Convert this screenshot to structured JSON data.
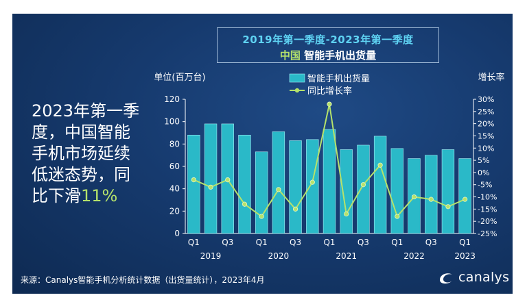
{
  "title": {
    "line1": "2019年第一季度-2023年第一季度",
    "country": "中国",
    "line2_rest": " 智能手机出货量"
  },
  "headline": {
    "main": "2023年第一季度，中国智能手机市场延续低迷态势，同比下滑",
    "highlight": "11%"
  },
  "source": "来源：Canalys智能手机分析统计数据（出货量统计），2023年4月",
  "logo": {
    "text": "canalys",
    "icon": "canalys-swoosh-icon"
  },
  "colors": {
    "bar": "#2ab9c8",
    "line": "#b5e26b",
    "text": "#ffffff",
    "highlight": "#b5e26b"
  },
  "chart_data": {
    "type": "bar+line",
    "ylabel": "单位(百万台)",
    "y2label": "增长率",
    "ylim": [
      0,
      120
    ],
    "yticks": [
      0,
      20,
      40,
      60,
      80,
      100,
      120
    ],
    "y2lim": [
      -25,
      30
    ],
    "y2ticks": [
      "30%",
      "25%",
      "20%",
      "15%",
      "10%",
      "5%",
      "0%",
      "-5%",
      "-10%",
      "-15%",
      "-20%",
      "-25%"
    ],
    "y2tick_values": [
      30,
      25,
      20,
      15,
      10,
      5,
      0,
      -5,
      -10,
      -15,
      -20,
      -25
    ],
    "categories": [
      "2019 Q1",
      "2019 Q2",
      "2019 Q3",
      "2019 Q4",
      "2020 Q1",
      "2020 Q2",
      "2020 Q3",
      "2020 Q4",
      "2021 Q1",
      "2021 Q2",
      "2021 Q3",
      "2021 Q4",
      "2022 Q1",
      "2022 Q2",
      "2022 Q3",
      "2022 Q4",
      "2023 Q1"
    ],
    "quarter_labels": [
      "Q1",
      "",
      "Q3",
      "",
      "Q1",
      "",
      "Q3",
      "",
      "Q1",
      "",
      "Q3",
      "",
      "Q1",
      "",
      "Q3",
      "",
      "Q1"
    ],
    "year_labels": [
      {
        "label": "2019",
        "at": 1
      },
      {
        "label": "2020",
        "at": 5
      },
      {
        "label": "2021",
        "at": 9
      },
      {
        "label": "2022",
        "at": 13
      },
      {
        "label": "2023",
        "at": 16
      }
    ],
    "series": [
      {
        "name": "智能手机出货量",
        "kind": "bar",
        "values": [
          88,
          98,
          98,
          88,
          73,
          91,
          83,
          84,
          93,
          75,
          79,
          87,
          76,
          67,
          70,
          75,
          67
        ]
      },
      {
        "name": "同比增长率",
        "kind": "line",
        "values": [
          -3,
          -6,
          -3,
          -13,
          -18,
          -7,
          -15,
          -4,
          28,
          -17,
          -5,
          3,
          -18,
          -10,
          -11,
          -14,
          -11
        ]
      }
    ],
    "legend": "top-center"
  }
}
